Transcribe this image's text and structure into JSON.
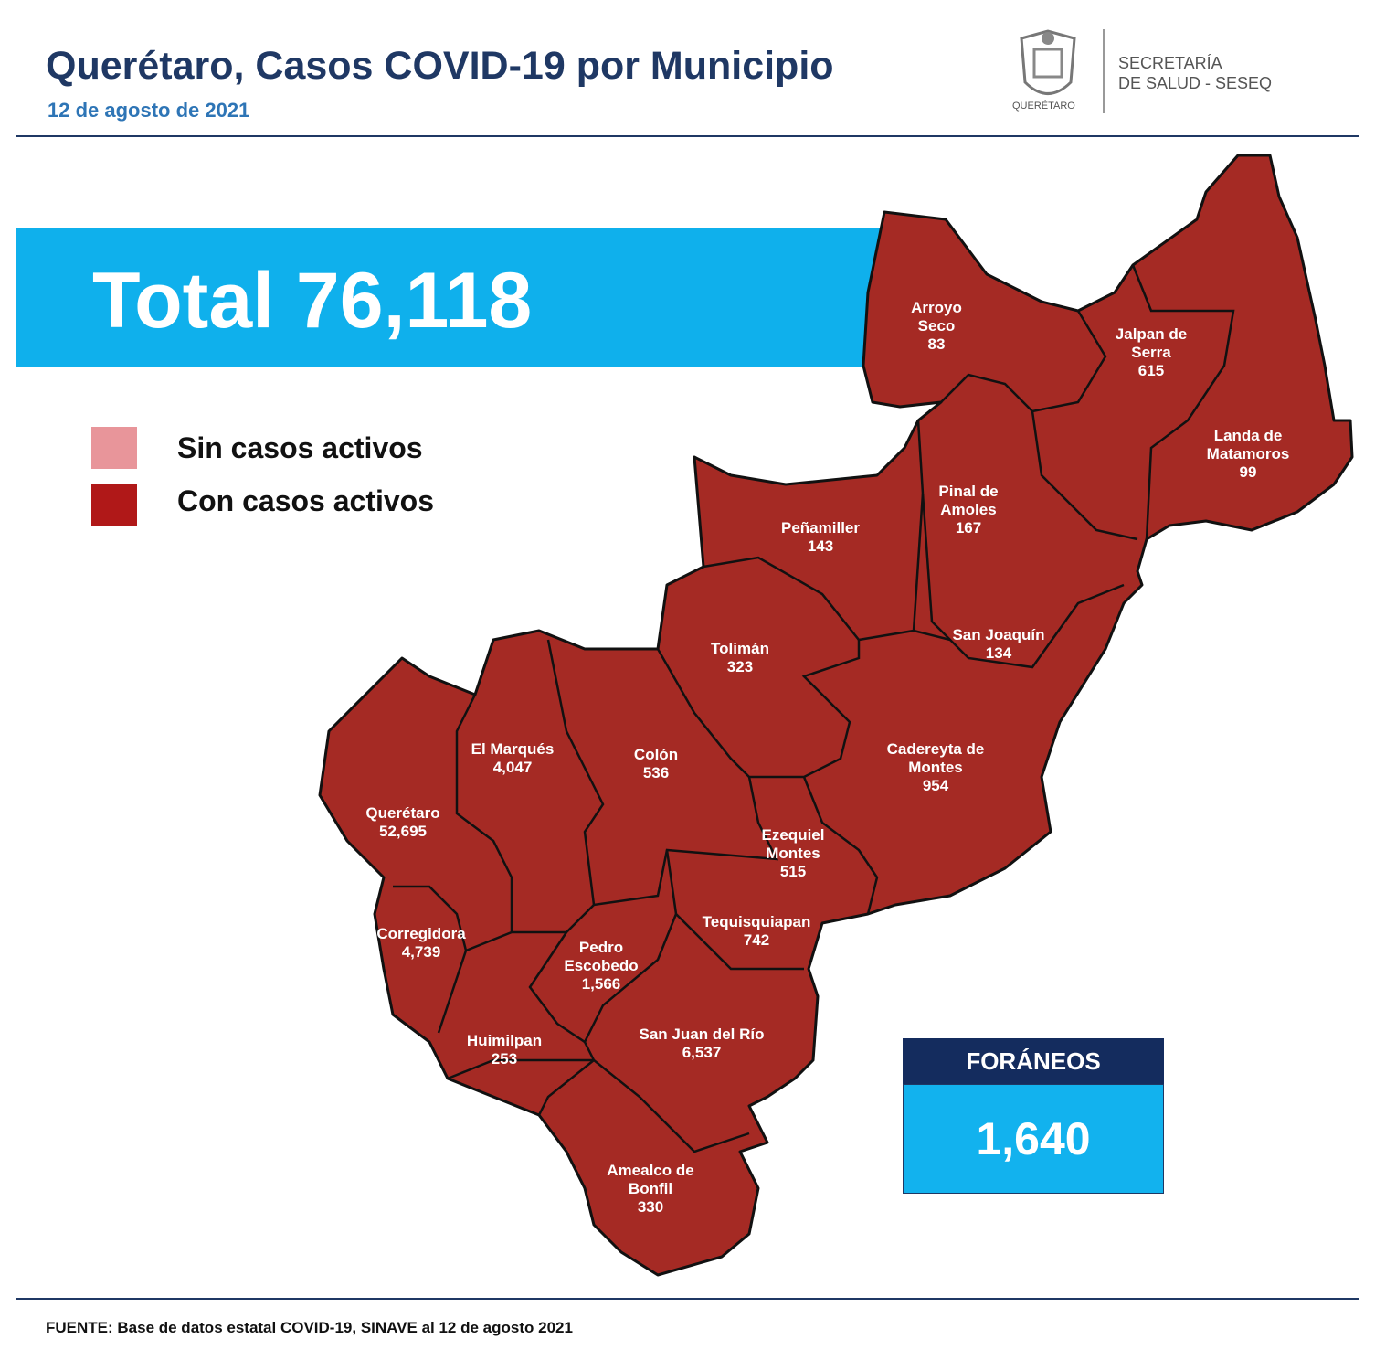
{
  "header": {
    "title": "Querétaro, Casos COVID-19 por Municipio",
    "date": "12 de agosto de 2021",
    "logo_text": "QUERÉTARO",
    "secretaria_line1": "SECRETARÍA",
    "secretaria_line2": "DE SALUD - SESEQ"
  },
  "total": "Total 76,118",
  "legend": [
    {
      "label": "Sin casos activos",
      "color": "#e8959a"
    },
    {
      "label": "Con casos activos",
      "color": "#b01818"
    }
  ],
  "map": {
    "fill": "#a52a24",
    "municipalities": [
      {
        "name": "Arroyo Seco",
        "cases": "83"
      },
      {
        "name": "Jalpan de Serra",
        "cases": "615"
      },
      {
        "name": "Landa de Matamoros",
        "cases": "99"
      },
      {
        "name": "Pinal de Amoles",
        "cases": "167"
      },
      {
        "name": "Peñamiller",
        "cases": "143"
      },
      {
        "name": "San Joaquín",
        "cases": "134"
      },
      {
        "name": "Tolimán",
        "cases": "323"
      },
      {
        "name": "Cadereyta de Montes",
        "cases": "954"
      },
      {
        "name": "El  Marqués",
        "cases": "4,047"
      },
      {
        "name": "Colón",
        "cases": "536"
      },
      {
        "name": "Querétaro",
        "cases": "52,695"
      },
      {
        "name": "Ezequiel Montes",
        "cases": "515"
      },
      {
        "name": "Tequisquiapan",
        "cases": "742"
      },
      {
        "name": "Corregidora",
        "cases": "4,739"
      },
      {
        "name": "Pedro Escobedo",
        "cases": "1,566"
      },
      {
        "name": "Huimilpan",
        "cases": "253"
      },
      {
        "name": "San Juan del Río",
        "cases": "6,537"
      },
      {
        "name": "Amealco de Bonfil",
        "cases": "330"
      }
    ]
  },
  "foraneos": {
    "label": "FORÁNEOS",
    "value": "1,640"
  },
  "source": "FUENTE:  Base de datos estatal COVID-19,  SINAVE  al 12 de agosto 2021"
}
